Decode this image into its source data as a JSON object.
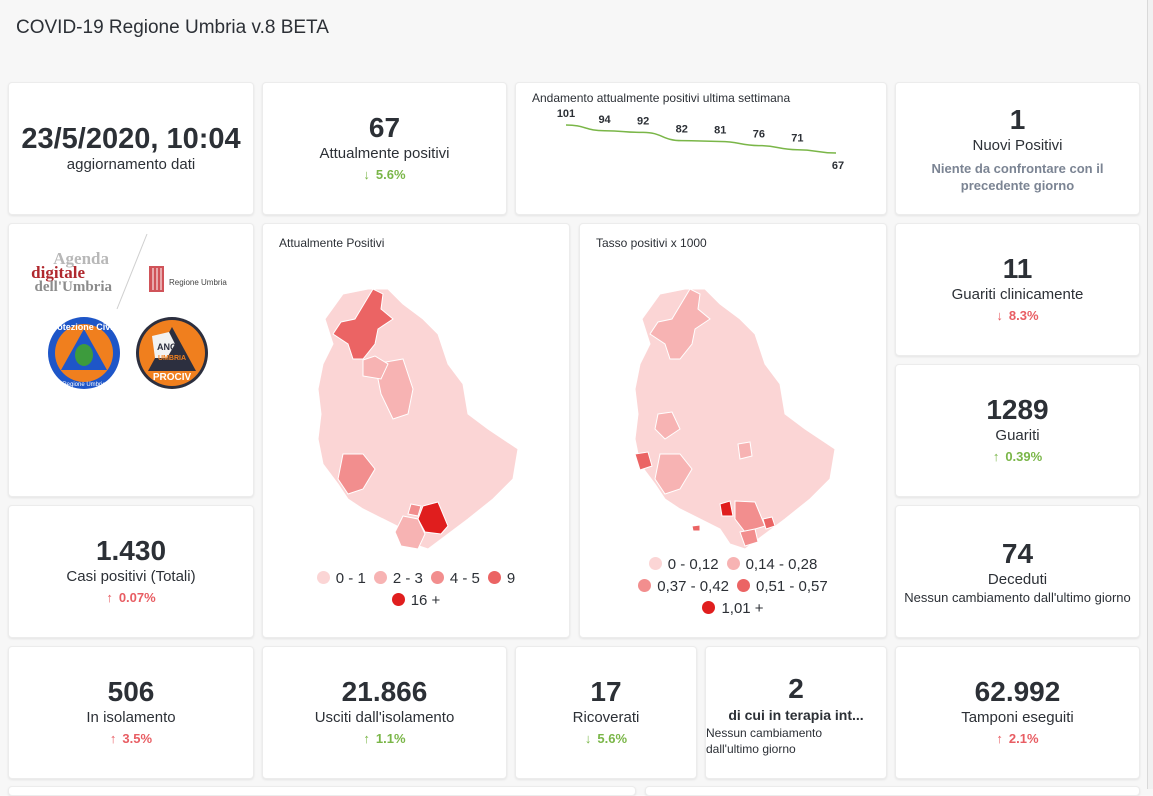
{
  "header": {
    "title": "COVID-19 Regione Umbria v.8 BETA"
  },
  "colors": {
    "increase_bad": "#e85d63",
    "decrease_good": "#7ab648",
    "sparkline": "#7ab648"
  },
  "date_card": {
    "value": "23/5/2020, 10:04",
    "label": "aggiornamento dati"
  },
  "attualmente_positivi": {
    "value": "67",
    "label": "Attualmente positivi",
    "arrow": "↓",
    "delta": "5.6%",
    "trend": "good"
  },
  "sparkline": {
    "title": "Andamento attualmente positivi ultima settimana",
    "chart_data": {
      "type": "line",
      "values": [
        101,
        94,
        92,
        82,
        81,
        76,
        71,
        67
      ],
      "labels": [
        "101",
        "94",
        "92",
        "82",
        "81",
        "76",
        "71",
        "67"
      ]
    }
  },
  "nuovi_positivi": {
    "value": "1",
    "label": "Nuovi Positivi",
    "note": "Niente da confrontare con il precedente giorno"
  },
  "logos": {
    "agenda_line1": "Agenda",
    "agenda_line2": "digitale",
    "agenda_line3": "dell'Umbria",
    "regione": "Regione Umbria",
    "protezione_top": "Protezione Civile",
    "protezione_bottom": "Regione Umbria",
    "anci_line1": "ANCI",
    "anci_line2": "UMBRIA",
    "anci_line3": "PROCIV"
  },
  "map_positivi": {
    "title": "Attualmente Positivi",
    "legend": [
      {
        "label": "0 - 1",
        "color": "#fbd5d5"
      },
      {
        "label": "2 - 3",
        "color": "#f7b3b3"
      },
      {
        "label": "4 - 5",
        "color": "#f28e8e"
      },
      {
        "label": "9",
        "color": "#eb6464"
      },
      {
        "label": "16 +",
        "color": "#e01e1e"
      }
    ]
  },
  "map_tasso": {
    "title": "Tasso positivi x 1000",
    "legend": [
      {
        "label": "0 - 0,12",
        "color": "#fbd5d5"
      },
      {
        "label": "0,14 - 0,28",
        "color": "#f7b3b3"
      },
      {
        "label": "0,37 - 0,42",
        "color": "#f28e8e"
      },
      {
        "label": "0,51 - 0,57",
        "color": "#eb6464"
      },
      {
        "label": "1,01 +",
        "color": "#e01e1e"
      }
    ]
  },
  "guariti_clinicamente": {
    "value": "11",
    "label": "Guariti clinicamente",
    "arrow": "↓",
    "delta": "8.3%",
    "trend": "bad"
  },
  "guariti": {
    "value": "1289",
    "label": "Guariti",
    "arrow": "↑",
    "delta": "0.39%",
    "trend": "good"
  },
  "casi_totali": {
    "value": "1.430",
    "label": "Casi positivi (Totali)",
    "arrow": "↑",
    "delta": "0.07%",
    "trend": "bad"
  },
  "deceduti": {
    "value": "74",
    "label": "Deceduti",
    "note": "Nessun cambiamento dall'ultimo giorno"
  },
  "isolamento": {
    "value": "506",
    "label": "In isolamento",
    "arrow": "↑",
    "delta": "3.5%",
    "trend": "bad"
  },
  "usciti": {
    "value": "21.866",
    "label": "Usciti dall'isolamento",
    "arrow": "↑",
    "delta": "1.1%",
    "trend": "good"
  },
  "ricoverati": {
    "value": "17",
    "label": "Ricoverati",
    "arrow": "↓",
    "delta": "5.6%",
    "trend": "good"
  },
  "terapia_intensiva": {
    "value": "2",
    "label": "di cui in terapia int...",
    "note": "Nessun cambiamento dall'ultimo giorno"
  },
  "tamponi": {
    "value": "62.992",
    "label": "Tamponi eseguiti",
    "arrow": "↑",
    "delta": "2.1%",
    "trend": "bad"
  }
}
